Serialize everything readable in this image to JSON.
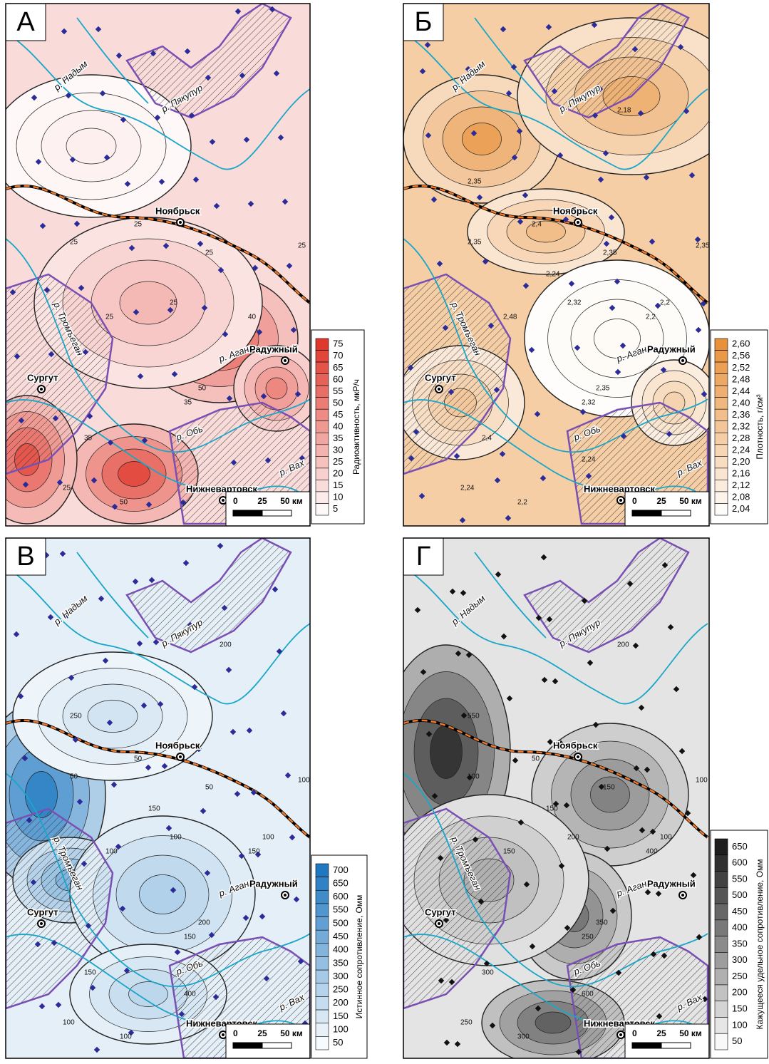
{
  "panels": [
    {
      "letter": "А",
      "legend": {
        "title": "Радиоактивность, мкР/ч",
        "values": [
          "75",
          "70",
          "65",
          "60",
          "55",
          "50",
          "45",
          "40",
          "35",
          "30",
          "25",
          "20",
          "15",
          "10",
          "5"
        ]
      },
      "cities": [
        "Ноябрьск",
        "Радужный",
        "Сургут",
        "Нижневартовск"
      ],
      "rivers": [
        "р. Надым",
        "р. Пякупур",
        "р. Тромъеган",
        "р. Аган",
        "р. Обь",
        "р. Вах"
      ],
      "contours": [
        "25",
        "25",
        "25",
        "25",
        "25",
        "25",
        "35",
        "35",
        "50",
        "25",
        "40",
        "50"
      ]
    },
    {
      "letter": "Б",
      "legend": {
        "title": "Плотность, г/см³",
        "values": [
          "2,60",
          "2,56",
          "2,52",
          "2,48",
          "2,44",
          "2,40",
          "2,36",
          "2,32",
          "2,28",
          "2,24",
          "2,20",
          "2,16",
          "2,12",
          "2,08",
          "2,04"
        ]
      },
      "cities": [
        "Ноябрьск",
        "Радужный",
        "Сургут",
        "Нижневартовск"
      ],
      "rivers": [
        "р. Надым",
        "р. Пякупур",
        "р. Тромъеган",
        "р. Аган",
        "р. Обь",
        "р. Вах"
      ],
      "contours": [
        "2,4",
        "2,35",
        "2,35",
        "2,35",
        "2,48",
        "2,32",
        "2,32",
        "2,4",
        "2,35",
        "2,24",
        "2,2",
        "2,2",
        "2,18",
        "2,24",
        "2,2",
        "2,35",
        "2,24"
      ]
    },
    {
      "letter": "В",
      "legend": {
        "title": "Истинное сопротивление, Омм",
        "values": [
          "700",
          "650",
          "600",
          "550",
          "500",
          "450",
          "400",
          "350",
          "300",
          "250",
          "200",
          "150",
          "100",
          "50"
        ]
      },
      "cities": [
        "Ноябрьск",
        "Радужный",
        "Сургут",
        "Нижневартовск"
      ],
      "rivers": [
        "р. Надым",
        "р. Пякупур",
        "р. Тромъеган",
        "р. Аган",
        "р. Обь",
        "р. Вах"
      ],
      "contours": [
        "50",
        "50",
        "50",
        "100",
        "100",
        "100",
        "150",
        "150",
        "200",
        "100",
        "150",
        "100",
        "200",
        "150",
        "100",
        "250",
        "400"
      ]
    },
    {
      "letter": "Г",
      "legend": {
        "title": "Кажущееся удельное сопротивление, Омм",
        "values": [
          "650",
          "600",
          "550",
          "500",
          "450",
          "400",
          "350",
          "300",
          "250",
          "200",
          "150",
          "100",
          "50"
        ]
      },
      "cities": [
        "Ноябрьск",
        "Радужный",
        "Сургут",
        "Нижневартовск"
      ],
      "rivers": [
        "р. Надым",
        "р. Пякупур",
        "р. Тромъеган",
        "р. Аган",
        "р. Обь",
        "р. Вах"
      ],
      "contours": [
        "50",
        "100",
        "150",
        "100",
        "150",
        "200",
        "250",
        "300",
        "350",
        "250",
        "400",
        "300",
        "200",
        "150",
        "100",
        "550",
        "600"
      ]
    }
  ],
  "scale_bar": [
    "0",
    "25",
    "50 км"
  ]
}
